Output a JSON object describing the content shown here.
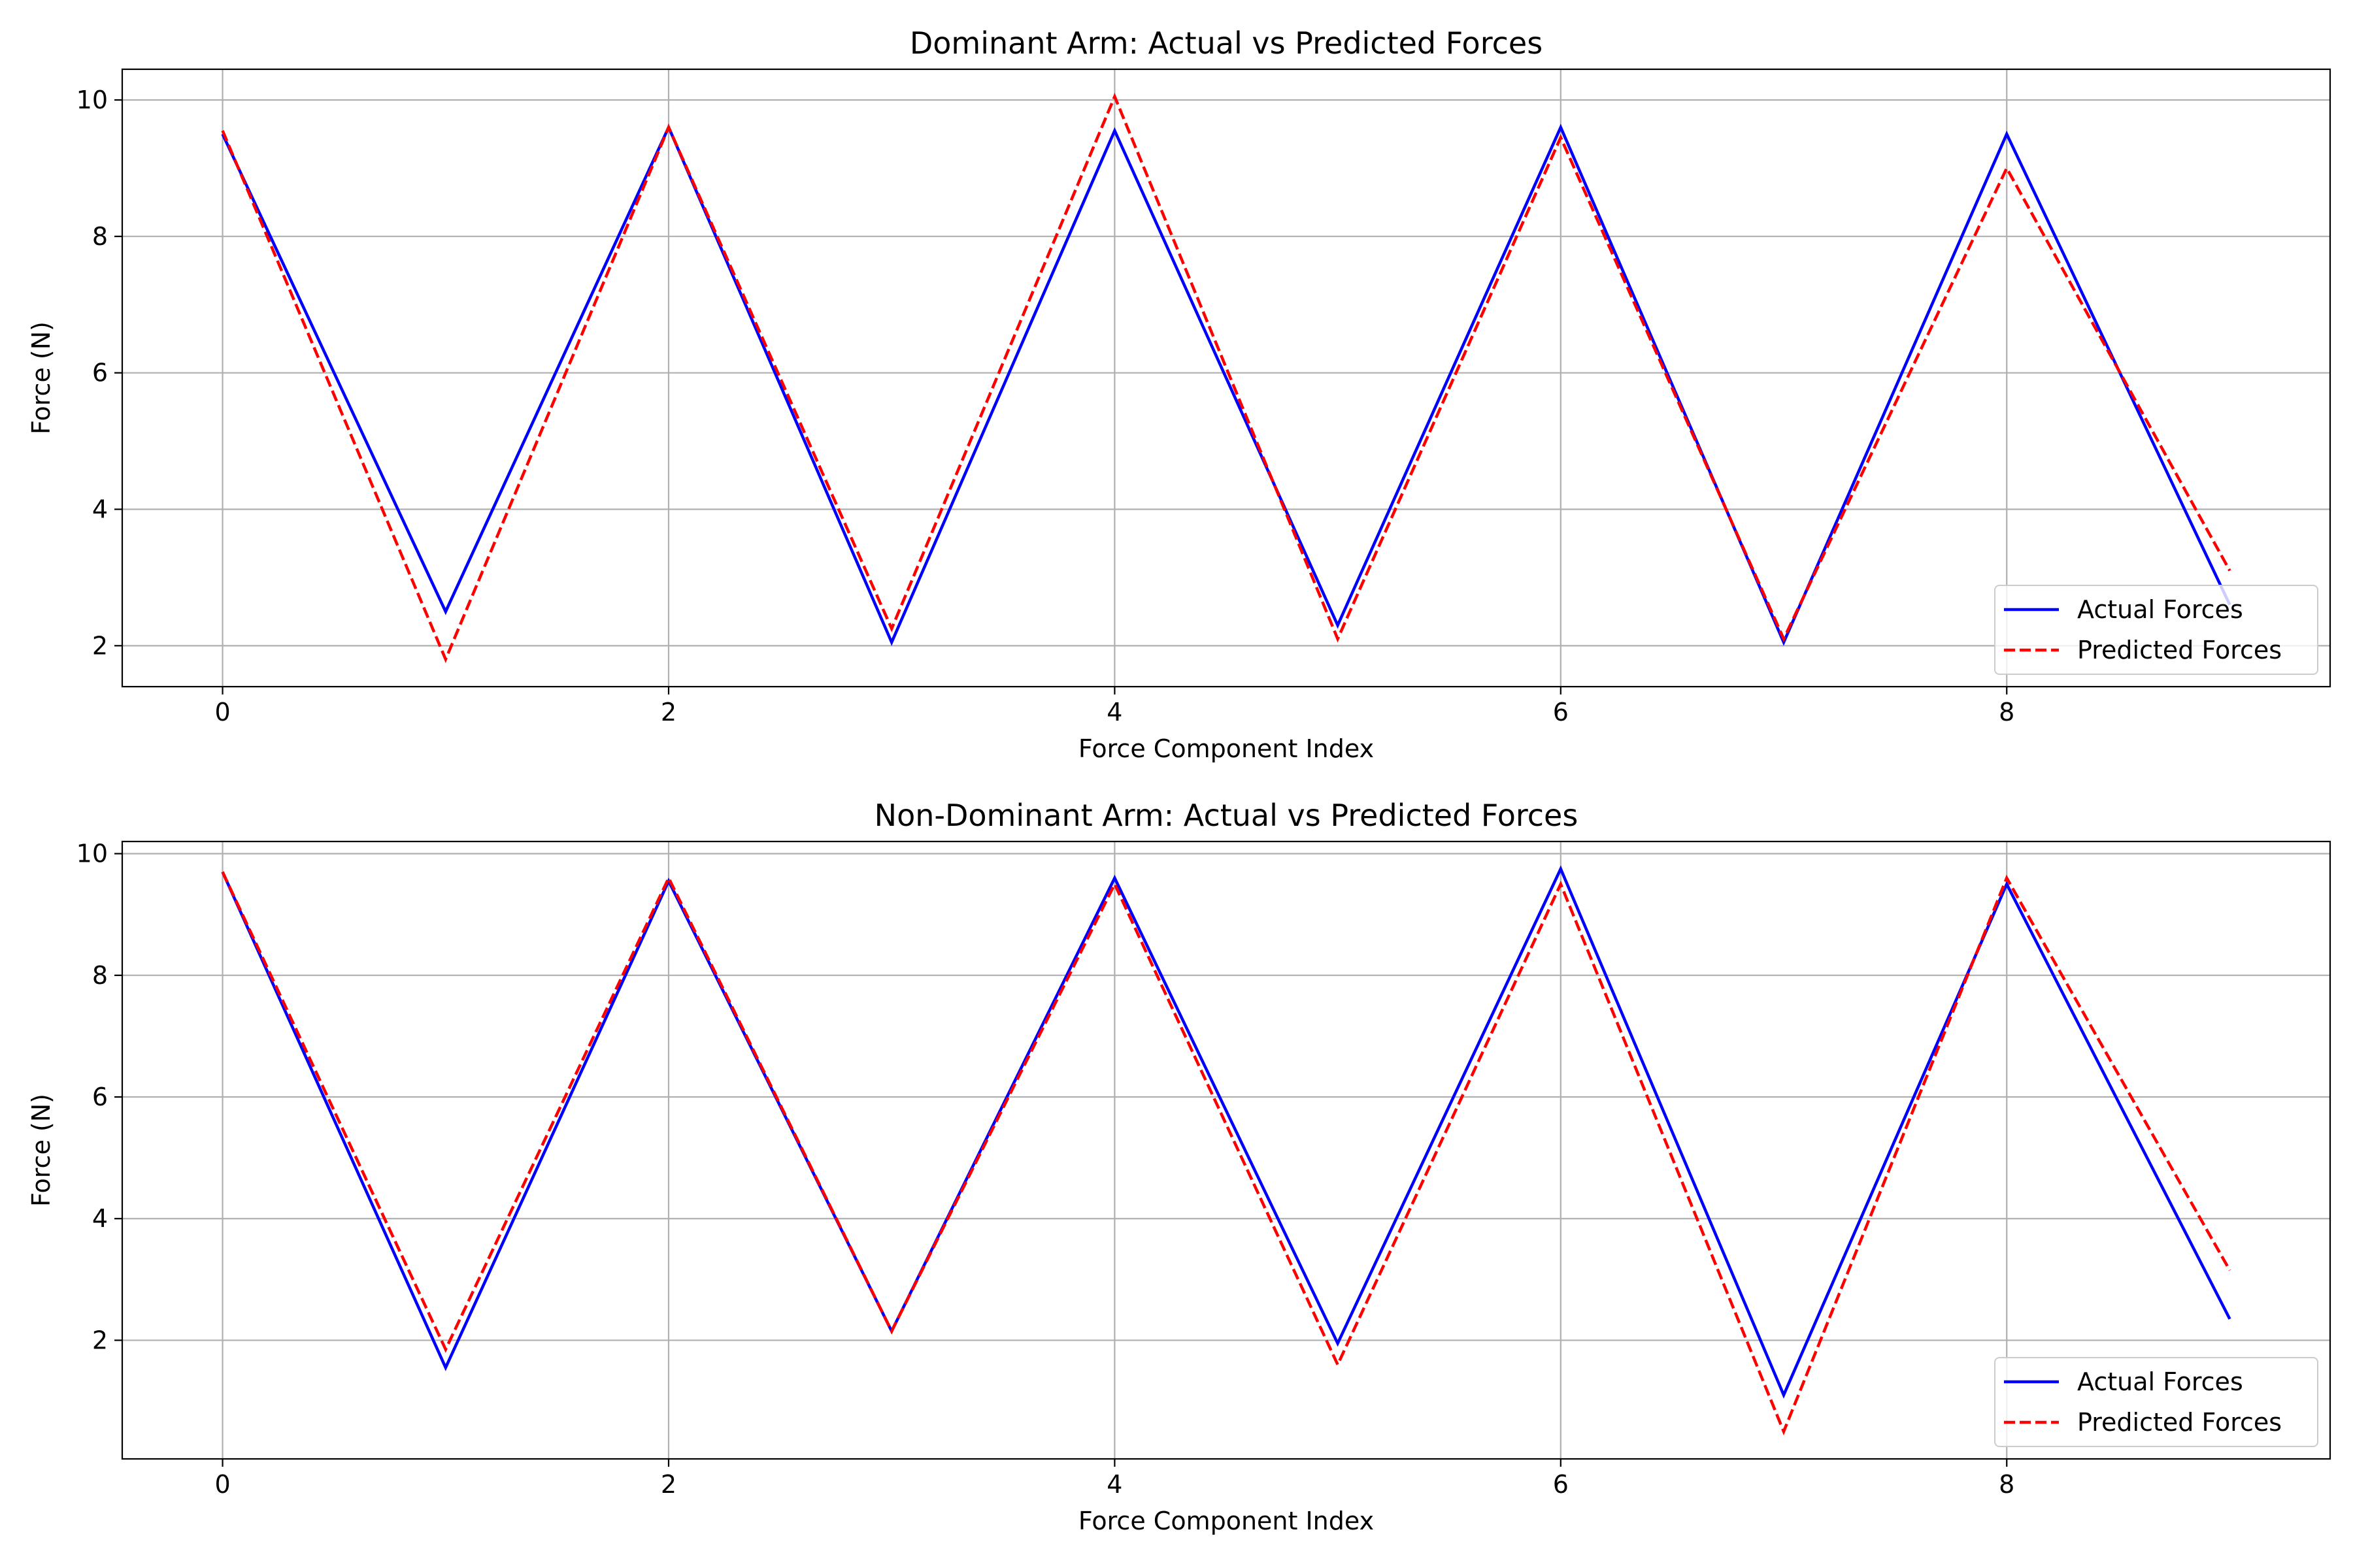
{
  "chart_data": [
    {
      "type": "line",
      "title": "Dominant Arm: Actual vs Predicted Forces",
      "xlabel": "Force Component Index",
      "ylabel": "Force (N)",
      "xlim": [
        -0.45,
        9.45
      ],
      "ylim": [
        1.4,
        10.45
      ],
      "xticks": [
        0,
        2,
        4,
        6,
        8
      ],
      "yticks": [
        2,
        4,
        6,
        8,
        10
      ],
      "grid": true,
      "legend_position": "lower-right",
      "x": [
        0,
        1,
        2,
        3,
        4,
        5,
        6,
        7,
        8,
        9
      ],
      "series": [
        {
          "name": "Actual Forces",
          "color": "#0000ff",
          "style": "solid",
          "values": [
            9.5,
            2.5,
            9.6,
            2.05,
            9.55,
            2.3,
            9.6,
            2.05,
            9.5,
            2.6
          ]
        },
        {
          "name": "Predicted Forces",
          "color": "#ff0000",
          "style": "dashed",
          "values": [
            9.55,
            1.8,
            9.6,
            2.25,
            10.05,
            2.1,
            9.45,
            2.1,
            9.0,
            3.1
          ]
        }
      ]
    },
    {
      "type": "line",
      "title": "Non-Dominant Arm: Actual vs Predicted Forces",
      "xlabel": "Force Component Index",
      "ylabel": "Force (N)",
      "xlim": [
        -0.45,
        9.45
      ],
      "ylim": [
        0.05,
        10.2
      ],
      "xticks": [
        0,
        2,
        4,
        6,
        8
      ],
      "yticks": [
        2,
        4,
        6,
        8,
        10
      ],
      "grid": true,
      "legend_position": "lower-right",
      "x": [
        0,
        1,
        2,
        3,
        4,
        5,
        6,
        7,
        8,
        9
      ],
      "series": [
        {
          "name": "Actual Forces",
          "color": "#0000ff",
          "style": "solid",
          "values": [
            9.7,
            1.55,
            9.55,
            2.15,
            9.6,
            1.95,
            9.75,
            1.1,
            9.5,
            2.35
          ]
        },
        {
          "name": "Predicted Forces",
          "color": "#ff0000",
          "style": "dashed",
          "values": [
            9.7,
            1.85,
            9.6,
            2.15,
            9.5,
            1.6,
            9.5,
            0.5,
            9.6,
            3.15
          ]
        }
      ]
    }
  ]
}
